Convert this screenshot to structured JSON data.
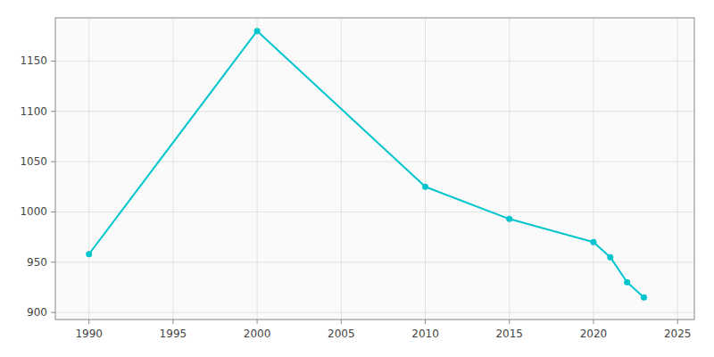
{
  "chart_data": {
    "type": "line",
    "x": [
      1990,
      2000,
      2010,
      2015,
      2020,
      2021,
      2022,
      2023
    ],
    "values": [
      958,
      1180,
      1025,
      993,
      970,
      955,
      930,
      915
    ],
    "color": "#00C5CD",
    "marker": "circle",
    "xlim": [
      1988,
      2026
    ],
    "ylim": [
      893,
      1193
    ],
    "xticks": [
      1990,
      1995,
      2000,
      2005,
      2010,
      2015,
      2020,
      2025
    ],
    "yticks": [
      900,
      950,
      1000,
      1050,
      1100,
      1150
    ],
    "grid": true
  }
}
